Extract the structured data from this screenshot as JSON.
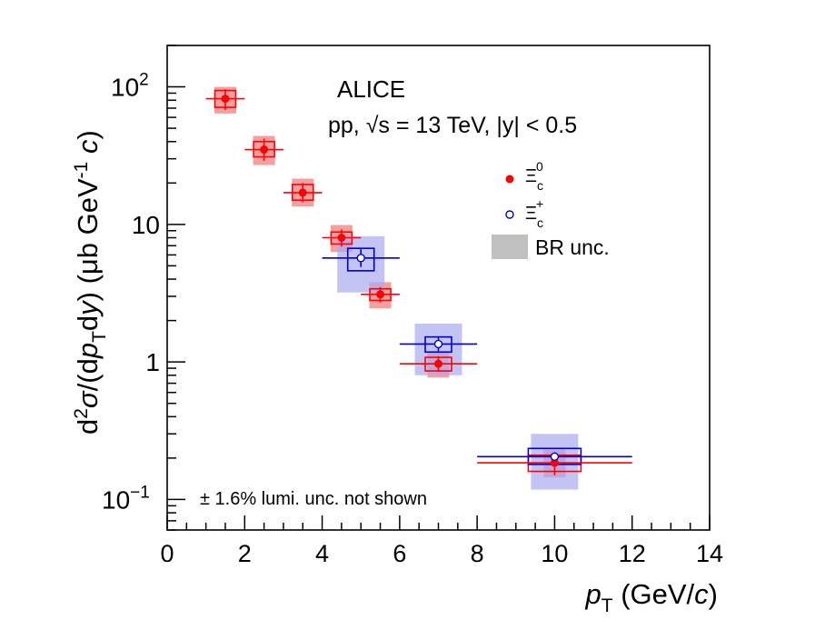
{
  "chart_data": {
    "type": "scatter",
    "experiment": "ALICE",
    "conditions": "pp, √s = 13 TeV, |y| < 0.5",
    "xlabel": "p_T (GeV/c)",
    "ylabel": "d²σ/(dp_T dy) (μb GeV⁻¹ c)",
    "xlim": [
      0,
      14
    ],
    "ylim": [
      0.06,
      200
    ],
    "yscale": "log",
    "x_ticks": [
      "0",
      "2",
      "4",
      "6",
      "8",
      "10",
      "12",
      "14"
    ],
    "y_ticks": [
      {
        "value": 0.1,
        "base": "10",
        "exp": "−1"
      },
      {
        "value": 1,
        "base": "1",
        "exp": ""
      },
      {
        "value": 10,
        "base": "10",
        "exp": ""
      },
      {
        "value": 100,
        "base": "10",
        "exp": "2"
      }
    ],
    "footnote": "± 1.6% lumi. unc. not shown",
    "legend_position": "top-right",
    "br_label": "BR unc.",
    "br_color": "#c0c0c0",
    "series": [
      {
        "name": "Ξc0",
        "symbol": "Ξ",
        "sub": "c",
        "sup": "0",
        "marker": "filled-circle",
        "color": "#ff0000",
        "band_color": "#f08080",
        "points": [
          {
            "x": 1.5,
            "xlo": 1,
            "xhi": 2,
            "y": 82,
            "stat": [
              68,
              96
            ],
            "syst": [
              71,
              94
            ],
            "br": [
              64,
              100
            ]
          },
          {
            "x": 2.5,
            "xlo": 2,
            "xhi": 3,
            "y": 35,
            "stat": [
              29,
              42
            ],
            "syst": [
              31,
              40
            ],
            "br": [
              27,
              44
            ]
          },
          {
            "x": 3.5,
            "xlo": 3,
            "xhi": 4,
            "y": 17,
            "stat": [
              14.5,
              20
            ],
            "syst": [
              15,
              19.5
            ],
            "br": [
              13.5,
              21.5
            ]
          },
          {
            "x": 4.5,
            "xlo": 4,
            "xhi": 5,
            "y": 8.0,
            "stat": [
              6.9,
              9.2
            ],
            "syst": [
              7.2,
              8.8
            ],
            "br": [
              6.3,
              9.9
            ]
          },
          {
            "x": 5.5,
            "xlo": 5,
            "xhi": 6,
            "y": 3.1,
            "stat": [
              2.7,
              3.5
            ],
            "syst": [
              2.8,
              3.4
            ],
            "br": [
              2.45,
              3.8
            ]
          },
          {
            "x": 7.0,
            "xlo": 6,
            "xhi": 8,
            "y": 0.97,
            "stat": [
              0.85,
              1.1
            ],
            "syst": [
              0.86,
              1.08
            ],
            "br": [
              0.77,
              1.2
            ]
          },
          {
            "x": 10.0,
            "xlo": 8,
            "xhi": 12,
            "y": 0.185,
            "stat": [
              0.15,
              0.22
            ],
            "syst": [
              0.16,
              0.21
            ],
            "br": [
              0.145,
              0.23
            ]
          }
        ]
      },
      {
        "name": "Ξc+",
        "symbol": "Ξ",
        "sub": "c",
        "sup": "+",
        "marker": "open-circle",
        "color": "#0000cc",
        "band_color": "#aaaaf0",
        "points": [
          {
            "x": 5.0,
            "xlo": 4,
            "xhi": 6,
            "y": 5.7,
            "stat": [
              4.9,
              6.6
            ],
            "syst": [
              4.6,
              6.7
            ],
            "br": [
              3.2,
              8.2
            ]
          },
          {
            "x": 7.0,
            "xlo": 6,
            "xhi": 8,
            "y": 1.35,
            "stat": [
              1.2,
              1.5
            ],
            "syst": [
              1.18,
              1.52
            ],
            "br": [
              0.8,
              1.9
            ]
          },
          {
            "x": 10.0,
            "xlo": 8,
            "xhi": 12,
            "y": 0.205,
            "stat": [
              0.19,
              0.22
            ],
            "syst": [
              0.18,
              0.235
            ],
            "br": [
              0.118,
              0.3
            ]
          }
        ]
      }
    ]
  }
}
